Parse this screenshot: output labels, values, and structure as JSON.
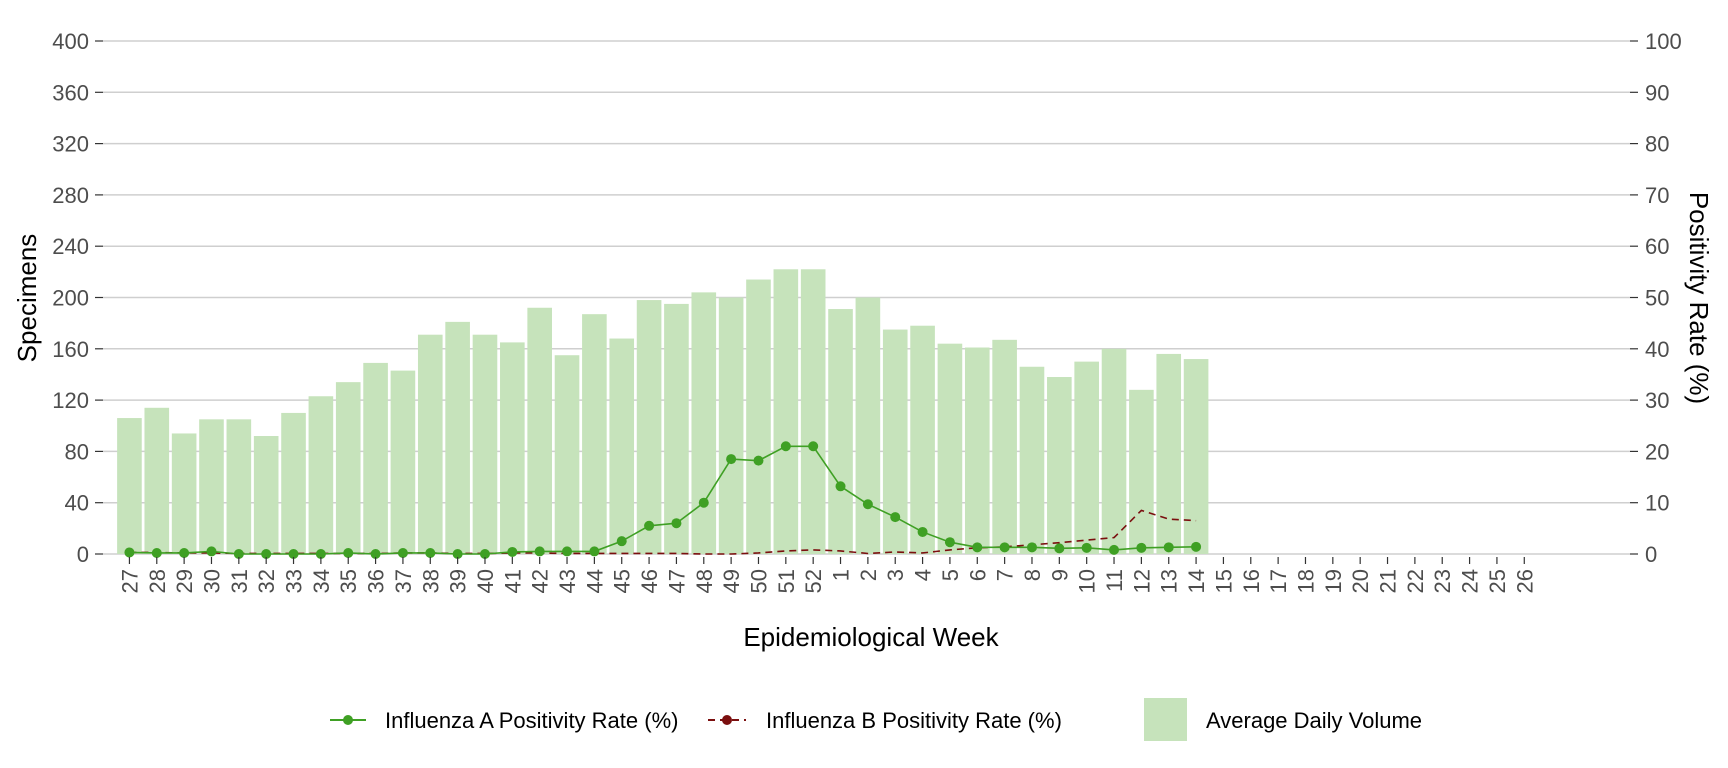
{
  "chart_data": {
    "type": "bar",
    "xlabel": "Epidemiological Week",
    "ylabel": "Specimens",
    "y2label": "Positivity Rate (%)",
    "ylim": [
      0,
      400
    ],
    "y2lim": [
      0,
      100
    ],
    "yticks": [
      0,
      40,
      80,
      120,
      160,
      200,
      240,
      280,
      320,
      360,
      400
    ],
    "y2ticks": [
      0,
      10,
      20,
      30,
      40,
      50,
      60,
      70,
      80,
      90,
      100
    ],
    "grid": "horizontal",
    "legend_position": "bottom",
    "categories": [
      "27",
      "28",
      "29",
      "30",
      "31",
      "32",
      "33",
      "34",
      "35",
      "36",
      "37",
      "38",
      "39",
      "40",
      "41",
      "42",
      "43",
      "44",
      "45",
      "46",
      "47",
      "48",
      "49",
      "50",
      "51",
      "52",
      "1",
      "2",
      "3",
      "4",
      "5",
      "6",
      "7",
      "8",
      "9",
      "10",
      "11",
      "12",
      "13",
      "14",
      "15",
      "16",
      "17",
      "18",
      "19",
      "20",
      "21",
      "22",
      "23",
      "24",
      "25",
      "26"
    ],
    "series": [
      {
        "name": "Average Daily Volume",
        "kind": "bar",
        "axis": "left",
        "color": "#c6e3bb",
        "values": [
          106,
          114,
          94,
          105,
          105,
          92,
          110,
          123,
          134,
          149,
          143,
          171,
          181,
          171,
          165,
          192,
          155,
          187,
          168,
          198,
          195,
          204,
          200,
          214,
          222,
          222,
          191,
          200,
          175,
          178,
          164,
          161,
          167,
          146,
          138,
          150,
          160,
          128,
          156,
          152,
          null,
          null,
          null,
          null,
          null,
          null,
          null,
          null,
          null,
          null,
          null,
          null
        ]
      },
      {
        "name": "Influenza A Positivity Rate (%)",
        "kind": "line",
        "axis": "right",
        "color": "#3fa024",
        "dash": "solid",
        "values": [
          0.3,
          0.2,
          0.2,
          0.5,
          0,
          0,
          0,
          0,
          0.2,
          0,
          0.2,
          0.2,
          0,
          0,
          0.4,
          0.5,
          0.5,
          0.5,
          2.5,
          5.5,
          6,
          10,
          18.5,
          18.2,
          21,
          21,
          13.2,
          9.7,
          7.2,
          4.3,
          2.3,
          1.3,
          1.3,
          1.3,
          1.1,
          1.2,
          0.8,
          1.2,
          1.3,
          1.4,
          null,
          null,
          null,
          null,
          null,
          null,
          null,
          null,
          null,
          null,
          null,
          null
        ]
      },
      {
        "name": "Influenza B Positivity Rate (%)",
        "kind": "line",
        "axis": "right",
        "color": "#7b0f0f",
        "dash": "dashed",
        "values": [
          0.3,
          0.3,
          0.2,
          0.2,
          0.1,
          0.1,
          0.1,
          0.1,
          0.1,
          0.1,
          0.2,
          0.2,
          0.1,
          0.1,
          0.2,
          0.2,
          0.1,
          0.1,
          0.1,
          0.1,
          0.1,
          0,
          0,
          0.2,
          0.6,
          0.8,
          0.6,
          0.1,
          0.4,
          0.2,
          0.8,
          1.2,
          1.4,
          1.8,
          2.2,
          2.7,
          3.2,
          8.5,
          6.8,
          6.5,
          null,
          null,
          null,
          null,
          null,
          null,
          null,
          null,
          null,
          null,
          null,
          null
        ]
      }
    ]
  }
}
